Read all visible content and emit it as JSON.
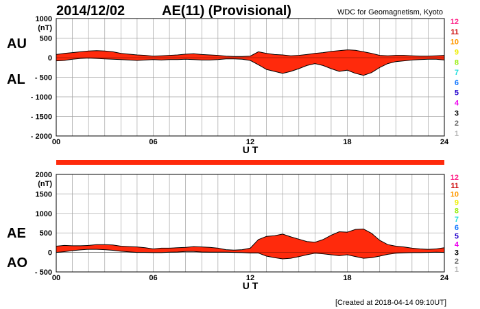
{
  "header": {
    "date": "2014/12/02",
    "title": "AE(11) (Provisional)",
    "source": "WDC for Geomagnetism, Kyoto"
  },
  "footer": {
    "created": "[Created at 2018-04-14 09:10UT]"
  },
  "colors": {
    "fill": "#ff2a0c",
    "grid": "#a0a0a0",
    "line": "#000000",
    "stations": [
      "#b8b8b8",
      "#666666",
      "#000000",
      "#ee00ee",
      "#2200cc",
      "#1177ff",
      "#22dddd",
      "#99ee11",
      "#eeee00",
      "#ff9900",
      "#cc0000",
      "#ff2288"
    ]
  },
  "station_counts": [
    "12",
    "11",
    "10",
    "9",
    "8",
    "7",
    "6",
    "5",
    "4",
    "3",
    "2",
    "1"
  ],
  "chart_data": [
    {
      "type": "area",
      "panel": "AU/AL",
      "series_labels": [
        "AU",
        "AL"
      ],
      "y_unit": "(nT)",
      "ylim": [
        -2000,
        1000
      ],
      "yticks": [
        1000,
        500,
        0,
        -500,
        -1000,
        -1500,
        -2000
      ],
      "ytick_labels": [
        "1000",
        "500",
        "0",
        "- 500",
        "- 1000",
        "- 1500",
        "- 2000"
      ],
      "xlim": [
        0,
        24
      ],
      "xticks": [
        "00",
        "06",
        "12",
        "18",
        "24"
      ],
      "xlabel": "U T",
      "x": [
        0,
        0.5,
        1,
        1.5,
        2,
        2.5,
        3,
        3.5,
        4,
        4.5,
        5,
        5.5,
        6,
        6.5,
        7,
        7.5,
        8,
        8.5,
        9,
        9.5,
        10,
        10.5,
        11,
        11.5,
        12,
        12.5,
        13,
        13.5,
        14,
        14.5,
        15,
        15.5,
        16,
        16.5,
        17,
        17.5,
        18,
        18.5,
        19,
        19.5,
        20,
        20.5,
        21,
        21.5,
        22,
        22.5,
        23,
        23.5,
        24
      ],
      "series": [
        {
          "name": "AU",
          "values": [
            80,
            110,
            130,
            150,
            170,
            180,
            170,
            150,
            110,
            90,
            70,
            60,
            40,
            50,
            60,
            70,
            90,
            100,
            80,
            70,
            60,
            40,
            30,
            30,
            40,
            150,
            110,
            80,
            70,
            50,
            60,
            80,
            110,
            130,
            160,
            180,
            200,
            190,
            150,
            110,
            60,
            50,
            60,
            60,
            50,
            40,
            40,
            50,
            60
          ]
        },
        {
          "name": "AL",
          "values": [
            -80,
            -70,
            -40,
            -20,
            -10,
            -20,
            -30,
            -40,
            -50,
            -60,
            -70,
            -60,
            -50,
            -60,
            -50,
            -50,
            -40,
            -50,
            -60,
            -60,
            -50,
            -30,
            -30,
            -40,
            -70,
            -180,
            -300,
            -350,
            -400,
            -350,
            -280,
            -200,
            -150,
            -200,
            -280,
            -350,
            -320,
            -400,
            -450,
            -380,
            -250,
            -150,
            -100,
            -80,
            -60,
            -50,
            -40,
            -40,
            -60
          ]
        }
      ]
    },
    {
      "type": "area",
      "panel": "AE/AO",
      "series_labels": [
        "AE",
        "AO"
      ],
      "y_unit": "(nT)",
      "ylim": [
        -500,
        2000
      ],
      "yticks": [
        2000,
        1500,
        1000,
        500,
        0,
        -500
      ],
      "ytick_labels": [
        "2000",
        "1500",
        "1000",
        "500",
        "0",
        "- 500"
      ],
      "xlim": [
        0,
        24
      ],
      "xticks": [
        "00",
        "06",
        "12",
        "18",
        "24"
      ],
      "xlabel": "U T",
      "x": [
        0,
        0.5,
        1,
        1.5,
        2,
        2.5,
        3,
        3.5,
        4,
        4.5,
        5,
        5.5,
        6,
        6.5,
        7,
        7.5,
        8,
        8.5,
        9,
        9.5,
        10,
        10.5,
        11,
        11.5,
        12,
        12.5,
        13,
        13.5,
        14,
        14.5,
        15,
        15.5,
        16,
        16.5,
        17,
        17.5,
        18,
        18.5,
        19,
        19.5,
        20,
        20.5,
        21,
        21.5,
        22,
        22.5,
        23,
        23.5,
        24
      ],
      "series": [
        {
          "name": "AE",
          "values": [
            160,
            180,
            170,
            170,
            180,
            200,
            200,
            190,
            160,
            150,
            140,
            120,
            90,
            110,
            110,
            120,
            130,
            150,
            140,
            130,
            110,
            70,
            60,
            70,
            110,
            330,
            410,
            430,
            470,
            400,
            340,
            280,
            260,
            330,
            440,
            530,
            520,
            590,
            600,
            490,
            310,
            200,
            160,
            140,
            110,
            90,
            80,
            90,
            120
          ]
        },
        {
          "name": "AO",
          "values": [
            0,
            20,
            45,
            65,
            80,
            80,
            70,
            55,
            30,
            15,
            0,
            0,
            -5,
            -5,
            5,
            10,
            25,
            25,
            10,
            5,
            5,
            5,
            0,
            -5,
            -15,
            -15,
            -95,
            -135,
            -165,
            -150,
            -110,
            -60,
            -20,
            -35,
            -60,
            -85,
            -60,
            -105,
            -150,
            -135,
            -95,
            -50,
            -20,
            -10,
            -5,
            -5,
            0,
            5,
            0
          ]
        }
      ]
    }
  ]
}
